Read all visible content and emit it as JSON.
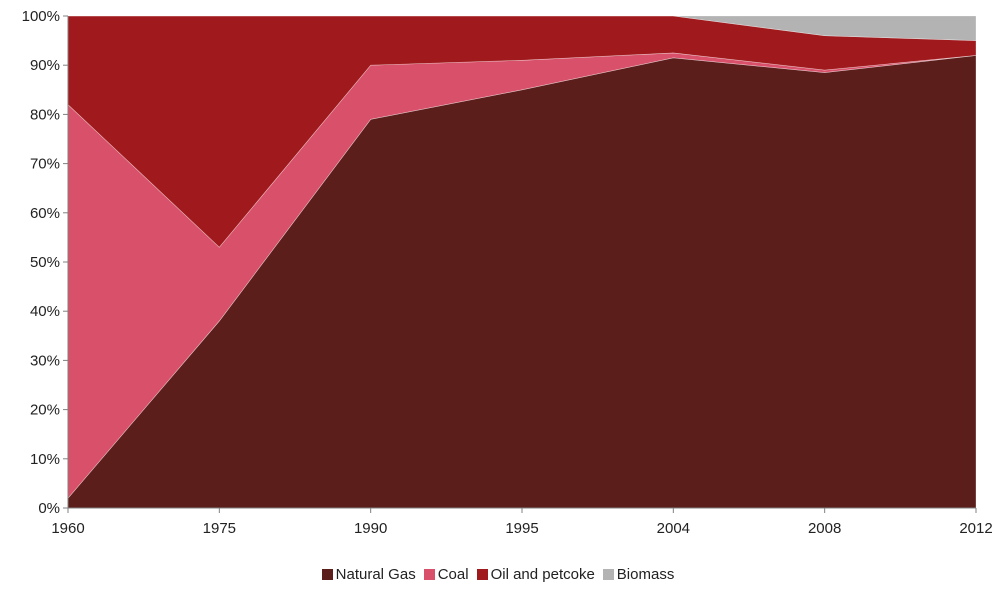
{
  "chart_data": {
    "type": "area",
    "stacked": true,
    "percent": true,
    "x": [
      "1960",
      "1975",
      "1990",
      "1995",
      "2004",
      "2008",
      "2012"
    ],
    "series": [
      {
        "name": "Natural Gas",
        "color": "#5c1e1b",
        "values": [
          2,
          38,
          79,
          85,
          91.5,
          88.5,
          92
        ]
      },
      {
        "name": "Coal",
        "color": "#d9506a",
        "values": [
          80,
          15,
          11,
          6,
          1,
          0.5,
          0
        ]
      },
      {
        "name": "Oil and petcoke",
        "color": "#a0191c",
        "values": [
          18,
          47,
          10,
          9,
          7.5,
          7,
          3
        ]
      },
      {
        "name": "Biomass",
        "color": "#b3b3b3",
        "values": [
          0,
          0,
          0,
          0,
          0,
          4,
          5
        ]
      }
    ],
    "ylim": [
      0,
      100
    ],
    "y_ticks": [
      "0%",
      "10%",
      "20%",
      "30%",
      "40%",
      "50%",
      "60%",
      "70%",
      "80%",
      "90%",
      "100%"
    ],
    "grid": false,
    "legend_position": "bottom",
    "title": "",
    "xlabel": "",
    "ylabel": ""
  }
}
